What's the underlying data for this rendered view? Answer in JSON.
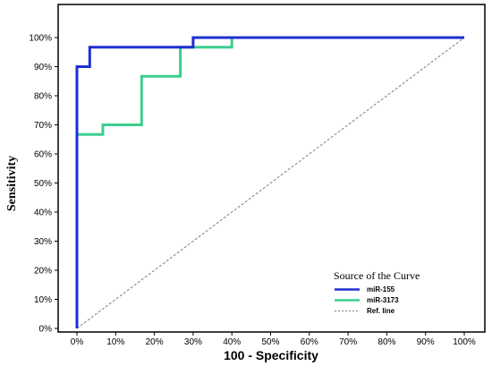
{
  "chart_data": {
    "type": "line",
    "xlabel": "100 - Specificity",
    "ylabel": "Sensitivity",
    "xlim": [
      0,
      100
    ],
    "ylim": [
      0,
      100
    ],
    "x_ticks": [
      "0%",
      "10%",
      "20%",
      "30%",
      "40%",
      "50%",
      "60%",
      "70%",
      "80%",
      "90%",
      "100%"
    ],
    "y_ticks": [
      "0%",
      "10%",
      "20%",
      "30%",
      "40%",
      "50%",
      "60%",
      "70%",
      "80%",
      "90%",
      "100%"
    ],
    "grid": false,
    "legend": {
      "title": "Source of the Curve",
      "placement": "bottom-right"
    },
    "series": [
      {
        "name": "miR-155",
        "color": "#1f2fd0",
        "style": "step",
        "x": [
          0,
          0,
          0,
          3.3,
          3.3,
          30,
          30,
          40,
          40,
          100
        ],
        "y": [
          0,
          66.7,
          90,
          90,
          96.7,
          96.7,
          100,
          100,
          100,
          100
        ]
      },
      {
        "name": "miR-3173",
        "color": "#3ccf8e",
        "style": "step",
        "x": [
          0,
          0,
          6.7,
          6.7,
          16.7,
          16.7,
          26.7,
          26.7,
          40,
          40,
          100
        ],
        "y": [
          0,
          66.7,
          66.7,
          70,
          70,
          86.7,
          86.7,
          96.7,
          96.7,
          100,
          100
        ]
      },
      {
        "name": "Ref. line",
        "color": "#808080",
        "style": "dashed",
        "x": [
          0,
          100
        ],
        "y": [
          0,
          100
        ]
      }
    ]
  }
}
